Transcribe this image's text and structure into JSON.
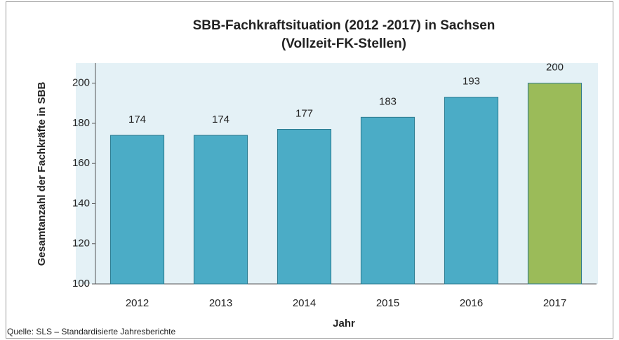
{
  "chart_data": {
    "type": "bar",
    "title": [
      "SBB-Fachkraftsituation (2012 -2017) in Sachsen",
      "(Vollzeit-FK-Stellen)"
    ],
    "x_label": "Jahr",
    "y_label": "Gesamtanzahl der Fachkräfte in SBB",
    "source": "Quelle: SLS – Standardisierte Jahresberichte",
    "categories": [
      "2012",
      "2013",
      "2014",
      "2015",
      "2016",
      "2017"
    ],
    "values": [
      174,
      174,
      177,
      183,
      193,
      200
    ],
    "colors": [
      "#4bacc6",
      "#4bacc6",
      "#4bacc6",
      "#4bacc6",
      "#4bacc6",
      "#9bbb59"
    ],
    "ylim": [
      100,
      210
    ],
    "yticks": [
      100,
      120,
      140,
      160,
      180,
      200
    ]
  }
}
